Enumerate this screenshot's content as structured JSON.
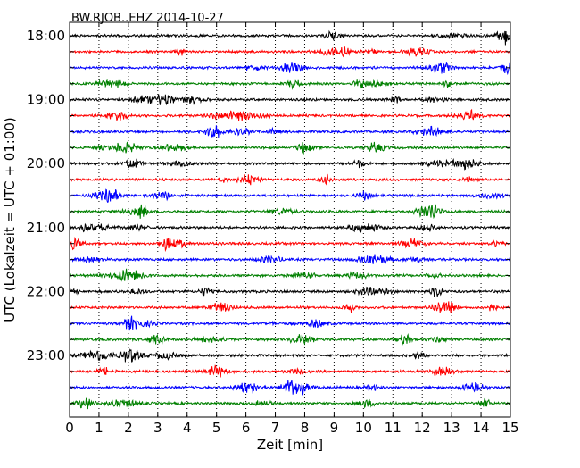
{
  "chart_data": {
    "type": "line",
    "title": "BW.RJOB..EHZ 2014-10-27",
    "xlabel": "Zeit  [min]",
    "ylabel": "UTC (Lokalzeit = UTC + 01:00)",
    "xlim": [
      0,
      15
    ],
    "x_ticks": [
      "0",
      "1",
      "2",
      "3",
      "4",
      "5",
      "6",
      "7",
      "8",
      "9",
      "10",
      "11",
      "12",
      "13",
      "14",
      "15"
    ],
    "y_tick_labels": [
      "18:00",
      "19:00",
      "20:00",
      "21:00",
      "22:00",
      "23:00"
    ],
    "grid": "vertical dotted lines at each minute",
    "series": [
      {
        "start": "18:00",
        "color": "#000000"
      },
      {
        "start": "18:15",
        "color": "#ff0000"
      },
      {
        "start": "18:30",
        "color": "#0000ff"
      },
      {
        "start": "18:45",
        "color": "#008000"
      },
      {
        "start": "19:00",
        "color": "#000000"
      },
      {
        "start": "19:15",
        "color": "#ff0000"
      },
      {
        "start": "19:30",
        "color": "#0000ff"
      },
      {
        "start": "19:45",
        "color": "#008000"
      },
      {
        "start": "20:00",
        "color": "#000000"
      },
      {
        "start": "20:15",
        "color": "#ff0000"
      },
      {
        "start": "20:30",
        "color": "#0000ff"
      },
      {
        "start": "20:45",
        "color": "#008000"
      },
      {
        "start": "21:00",
        "color": "#000000"
      },
      {
        "start": "21:15",
        "color": "#ff0000"
      },
      {
        "start": "21:30",
        "color": "#0000ff"
      },
      {
        "start": "21:45",
        "color": "#008000"
      },
      {
        "start": "22:00",
        "color": "#000000"
      },
      {
        "start": "22:15",
        "color": "#ff0000"
      },
      {
        "start": "22:30",
        "color": "#0000ff"
      },
      {
        "start": "22:45",
        "color": "#008000"
      },
      {
        "start": "23:00",
        "color": "#000000"
      },
      {
        "start": "23:15",
        "color": "#ff0000"
      },
      {
        "start": "23:30",
        "color": "#0000ff"
      },
      {
        "start": "23:45",
        "color": "#008000"
      }
    ]
  }
}
